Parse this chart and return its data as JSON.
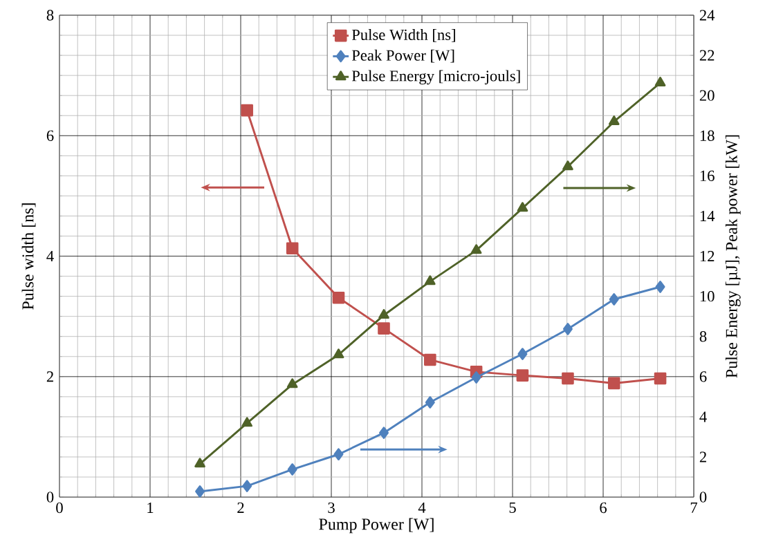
{
  "chart_data": {
    "type": "line",
    "xlabel": "Pump Power [W]",
    "ylabel": "Pulse width [ns]",
    "y2label": "Pulse Energy [µJ], Peak power [kW]",
    "xlim": [
      0,
      7
    ],
    "xticks": [
      0,
      1,
      2,
      3,
      4,
      5,
      6,
      7
    ],
    "ylim": [
      0,
      8
    ],
    "yticks": [
      0,
      2,
      4,
      6,
      8
    ],
    "y2lim": [
      0,
      24
    ],
    "y2ticks": [
      0,
      2,
      4,
      6,
      8,
      10,
      12,
      14,
      16,
      18,
      20,
      22,
      24
    ],
    "grid": true,
    "legend": "top",
    "line_style": "solid",
    "series": [
      {
        "name": "Pulse Width [ns]",
        "color": "#c0504d",
        "marker": "square",
        "x": [
          2.07,
          2.57,
          3.08,
          3.58,
          4.09,
          4.6,
          5.11,
          5.61,
          6.12,
          6.63
        ],
        "values": [
          6.42,
          4.13,
          3.31,
          2.8,
          2.28,
          2.08,
          2.02,
          1.97,
          1.89,
          1.97
        ]
      },
      {
        "name": "Peak Power [W]",
        "color": "#4f81bd",
        "marker": "diamond",
        "axis": "y2",
        "x": [
          1.55,
          2.07,
          2.57,
          3.08,
          3.58,
          4.09,
          4.6,
          5.11,
          5.61,
          6.12,
          6.63
        ],
        "values": [
          0.28,
          0.55,
          1.38,
          2.13,
          3.2,
          4.72,
          5.96,
          7.13,
          8.37,
          9.85,
          10.47
        ]
      },
      {
        "name": "Pulse Energy [micro-jouls]",
        "color": "#4f6228",
        "marker": "triangle",
        "axis": "y2",
        "x": [
          1.55,
          2.07,
          2.57,
          3.08,
          3.58,
          4.09,
          4.6,
          5.11,
          5.61,
          6.12,
          6.63
        ],
        "values": [
          1.65,
          3.68,
          5.61,
          7.09,
          9.06,
          10.74,
          12.29,
          14.39,
          16.46,
          18.7,
          20.63
        ]
      }
    ]
  }
}
